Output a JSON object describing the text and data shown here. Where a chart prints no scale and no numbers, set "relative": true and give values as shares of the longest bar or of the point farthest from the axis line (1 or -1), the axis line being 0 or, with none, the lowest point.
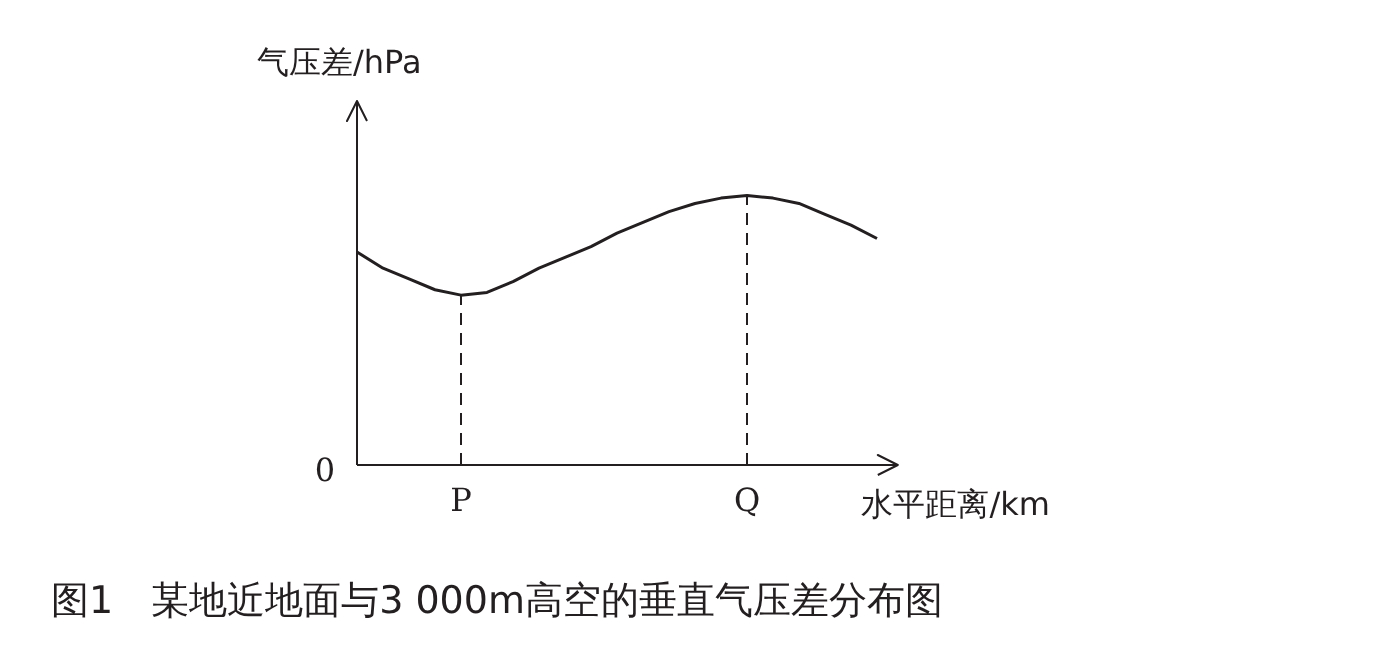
{
  "chart_data": {
    "type": "line",
    "relative": true,
    "title": "图1　某地近地面与3 000m高空的垂直气压差分布图",
    "ylabel": "气压差/hPa",
    "xlabel": "水平距离/km",
    "categories": [
      null,
      null,
      null,
      null,
      "P",
      null,
      null,
      null,
      null,
      null,
      null,
      null,
      null,
      null,
      null,
      "Q",
      null,
      null,
      null,
      null,
      null
    ],
    "series": [
      {
        "color": "#231f20",
        "values": [
          0.79,
          0.73,
          0.69,
          0.65,
          0.63,
          0.64,
          0.68,
          0.73,
          0.77,
          0.81,
          0.86,
          0.9,
          0.94,
          0.97,
          0.99,
          1.0,
          0.99,
          0.97,
          0.93,
          0.89,
          0.84
        ]
      }
    ],
    "ref_lines": [
      {
        "axis": "x",
        "value": "P",
        "line_style": "dashed"
      },
      {
        "axis": "x",
        "value": "Q",
        "line_style": "dashed"
      }
    ],
    "annotations": [
      "0"
    ],
    "grid": false,
    "marker": "none",
    "line_style": "solid"
  }
}
